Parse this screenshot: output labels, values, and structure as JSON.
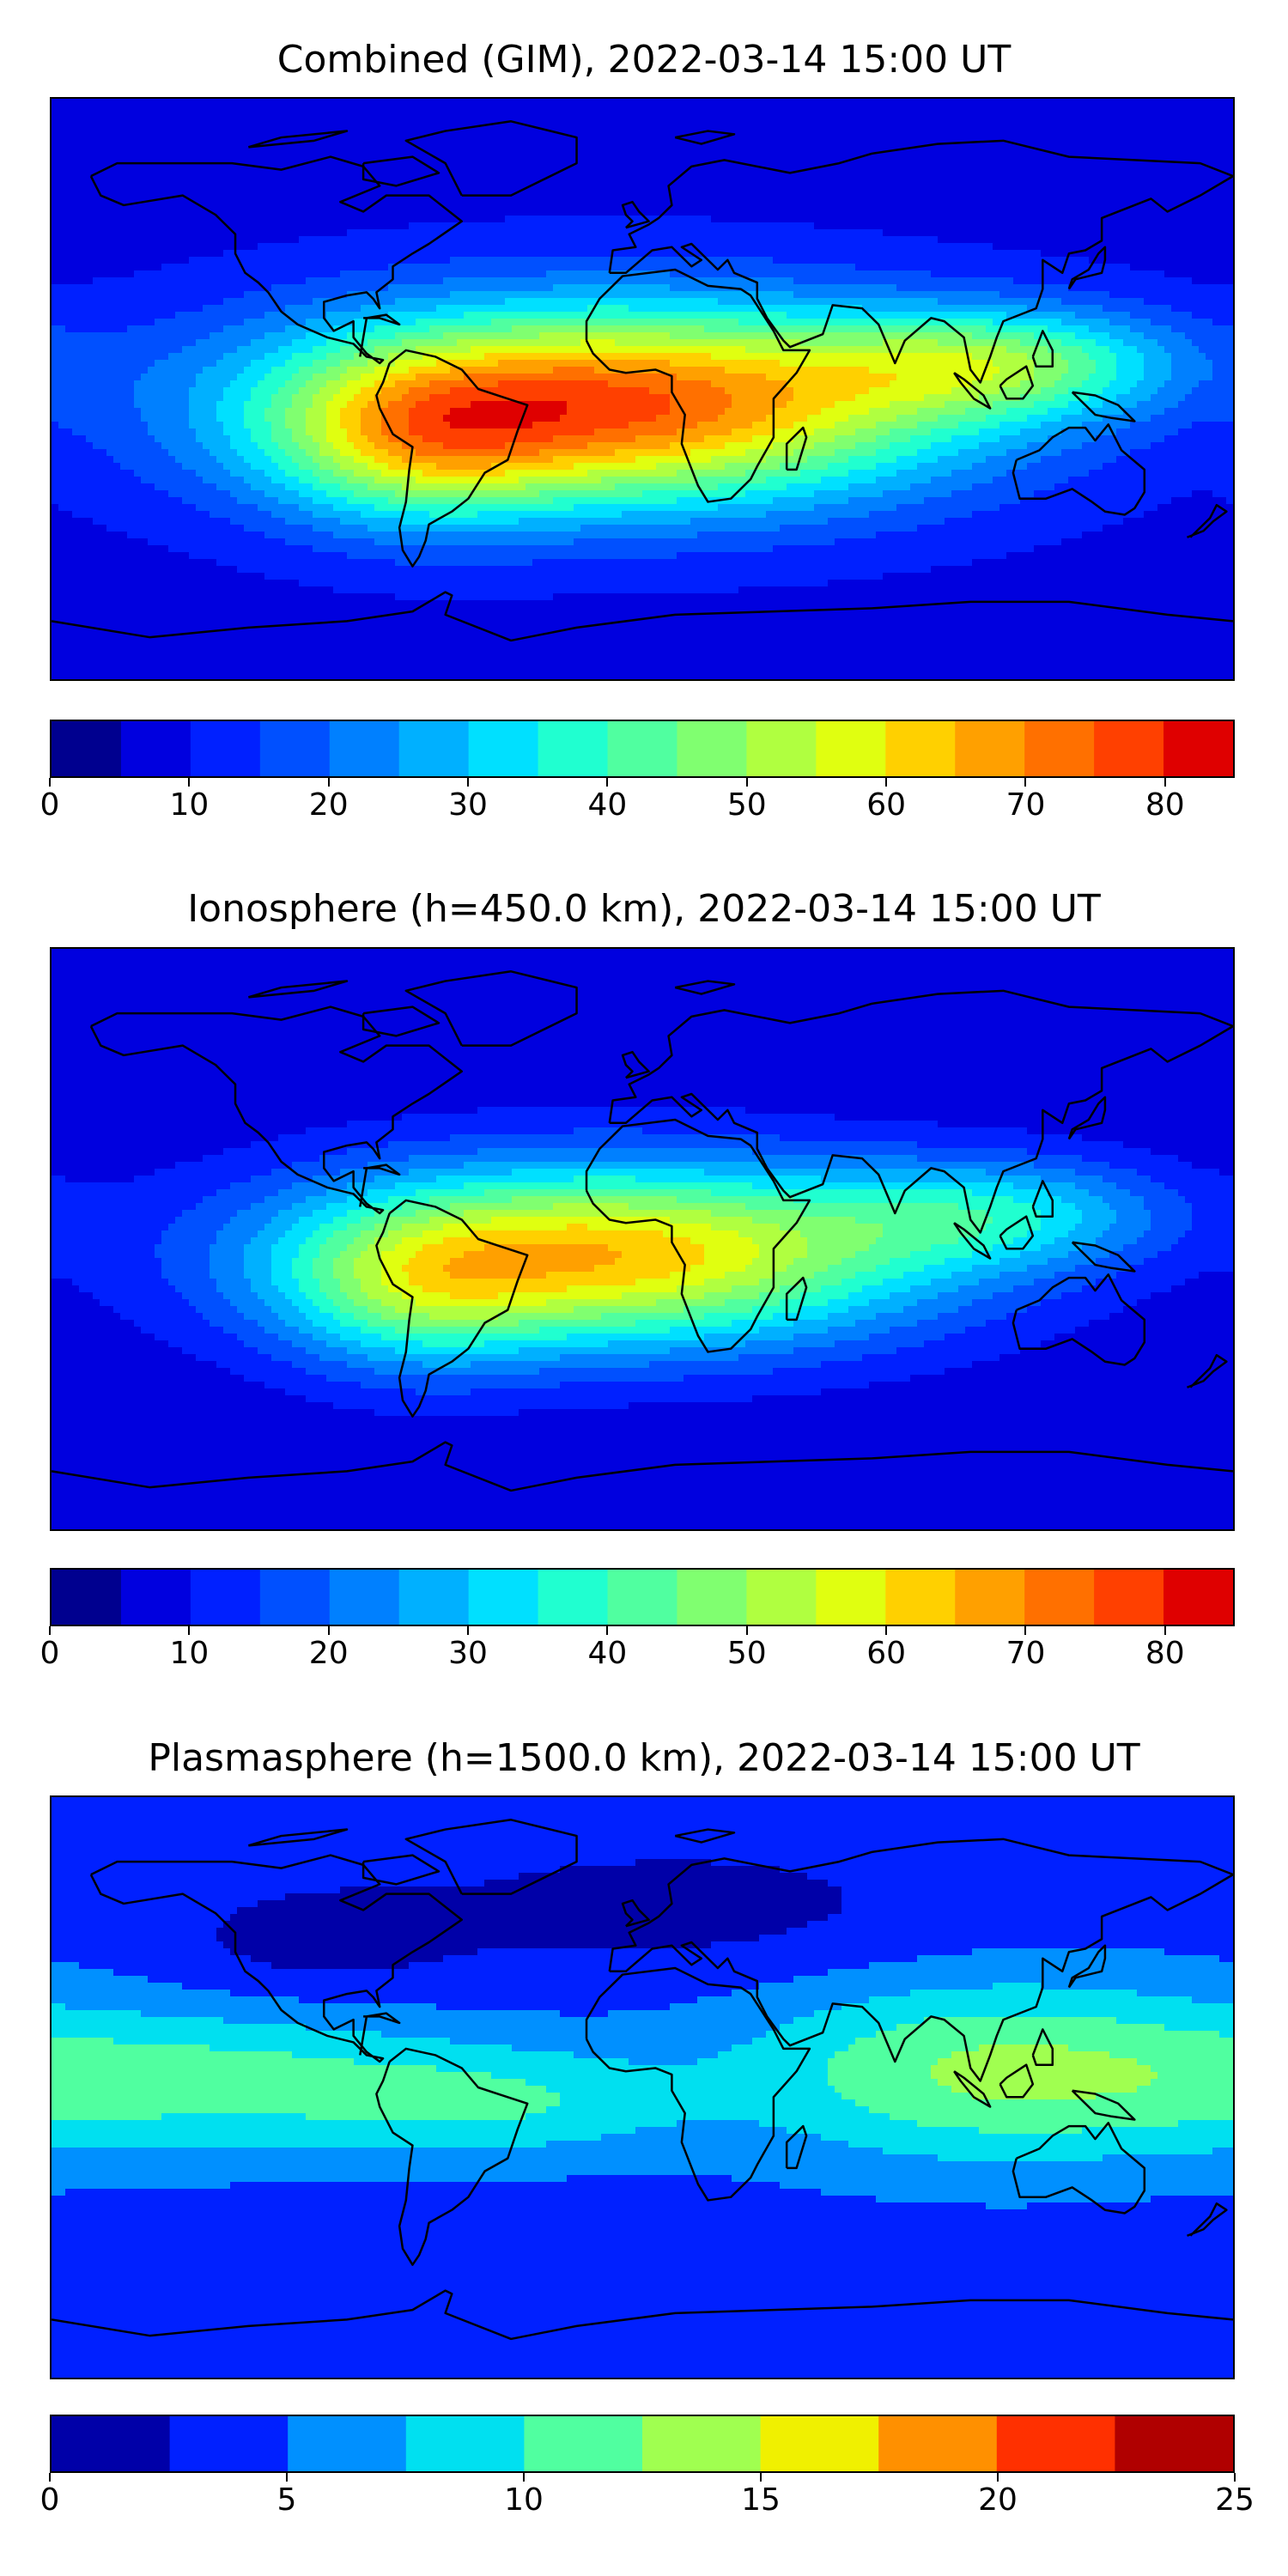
{
  "chart_data": [
    {
      "type": "heatmap",
      "title": "Combined (GIM), 2022-03-14 15:00 UT",
      "colorbar": {
        "levels": [
          0,
          5,
          10,
          15,
          20,
          25,
          30,
          35,
          40,
          45,
          50,
          55,
          60,
          65,
          70,
          75,
          80,
          85
        ],
        "ticks": [
          0,
          10,
          20,
          30,
          40,
          50,
          60,
          70,
          80
        ],
        "tick_labels": [
          "0",
          "10",
          "20",
          "30",
          "40",
          "50",
          "60",
          "70",
          "80"
        ]
      },
      "field": {
        "background": 8,
        "peaks": [
          {
            "lon": -10,
            "lat": -5,
            "value": 68,
            "sx": 75,
            "sy": 22
          },
          {
            "lon": 110,
            "lat": 8,
            "value": 30,
            "sx": 40,
            "sy": 12
          },
          {
            "lon": -70,
            "lat": -18,
            "value": 22,
            "sx": 30,
            "sy": 18
          }
        ]
      }
    },
    {
      "type": "heatmap",
      "title": "Ionosphere  (h=450.0 km), 2022-03-14 15:00 UT",
      "colorbar": {
        "levels": [
          0,
          5,
          10,
          15,
          20,
          25,
          30,
          35,
          40,
          45,
          50,
          55,
          60,
          65,
          70,
          75,
          80,
          85
        ],
        "ticks": [
          0,
          10,
          20,
          30,
          40,
          50,
          60,
          70,
          80
        ],
        "tick_labels": [
          "0",
          "10",
          "20",
          "30",
          "40",
          "50",
          "60",
          "70",
          "80"
        ]
      },
      "field": {
        "background": 6,
        "peaks": [
          {
            "lon": -10,
            "lat": -5,
            "value": 58,
            "sx": 70,
            "sy": 20
          },
          {
            "lon": 110,
            "lat": 8,
            "value": 22,
            "sx": 38,
            "sy": 12
          },
          {
            "lon": -70,
            "lat": -18,
            "value": 18,
            "sx": 28,
            "sy": 18
          }
        ]
      }
    },
    {
      "type": "heatmap",
      "title": "Plasmasphere (h=1500.0 km), 2022-03-14 15:00 UT",
      "colorbar": {
        "levels": [
          0,
          2.5,
          5,
          7.5,
          10,
          12.5,
          15,
          17.5,
          20,
          22.5,
          25
        ],
        "ticks": [
          0,
          5,
          10,
          15,
          20,
          25
        ],
        "tick_labels": [
          "0",
          "5",
          "10",
          "15",
          "20",
          "25"
        ]
      },
      "field": {
        "background": 4,
        "peaks": [
          {
            "lon": 105,
            "lat": 5,
            "value": 8.5,
            "sx": 55,
            "sy": 20
          },
          {
            "lon": -130,
            "lat": 2,
            "value": 6.5,
            "sx": 60,
            "sy": 16
          },
          {
            "lon": -40,
            "lat": -5,
            "value": 4.5,
            "sx": 40,
            "sy": 12
          },
          {
            "lon": 10,
            "lat": 55,
            "value": -2.5,
            "sx": 60,
            "sy": 15
          },
          {
            "lon": -100,
            "lat": 45,
            "value": -2.5,
            "sx": 30,
            "sy": 12
          }
        ]
      }
    }
  ],
  "colors": {
    "jet17": [
      "#00008f",
      "#0000df",
      "#0020ff",
      "#0050ff",
      "#0080ff",
      "#00b0ff",
      "#00e0ff",
      "#20ffd0",
      "#50ffa0",
      "#80ff70",
      "#b0ff40",
      "#e0ff10",
      "#ffd000",
      "#ffa000",
      "#ff7000",
      "#ff4000",
      "#df0000",
      "#9f0000"
    ],
    "jet10": [
      "#0000a8",
      "#0020ff",
      "#0090ff",
      "#00e0f0",
      "#50ffa0",
      "#a0ff50",
      "#f0f000",
      "#ff9000",
      "#ff3000",
      "#b00000"
    ],
    "coast": "#000000"
  }
}
